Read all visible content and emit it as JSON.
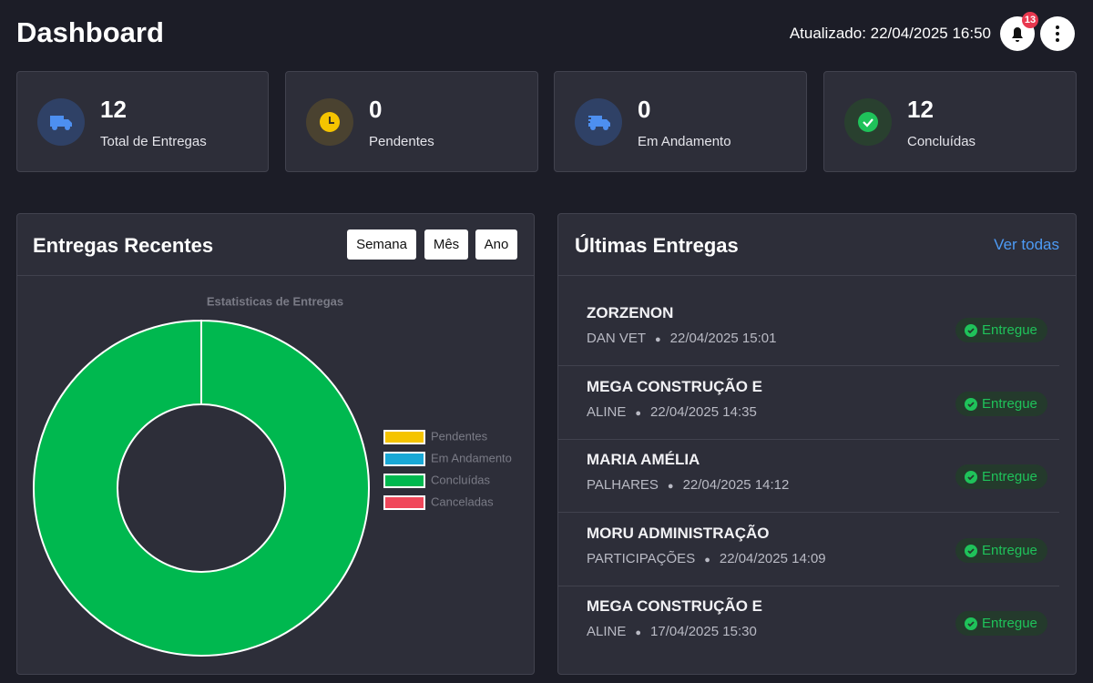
{
  "header": {
    "title": "Dashboard",
    "updated": "Atualizado: 22/04/2025 16:50",
    "notifications": 13
  },
  "stats": [
    {
      "value": 12,
      "label": "Total de Entregas"
    },
    {
      "value": 0,
      "label": "Pendentes"
    },
    {
      "value": 0,
      "label": "Em Andamento"
    },
    {
      "value": 12,
      "label": "Concluídas"
    }
  ],
  "recent": {
    "title": "Entregas Recentes",
    "filters": [
      "Semana",
      "Mês",
      "Ano"
    ]
  },
  "chart_data": {
    "type": "pie",
    "title": "Estatisticas de Entregas",
    "categories": [
      "Pendentes",
      "Em Andamento",
      "Concluídas",
      "Canceladas"
    ],
    "values": [
      0,
      0,
      12,
      0
    ],
    "colors": [
      "#f5c400",
      "#19a8d6",
      "#00b84f",
      "#f0475a"
    ]
  },
  "latest": {
    "title": "Últimas Entregas",
    "link": "Ver todas",
    "items": [
      {
        "name": "ZORZENON",
        "client": "DAN VET",
        "date": "22/04/2025 15:01",
        "status": "Entregue"
      },
      {
        "name": "MEGA CONSTRUÇÃO E",
        "client": "ALINE",
        "date": "22/04/2025 14:35",
        "status": "Entregue"
      },
      {
        "name": "MARIA AMÉLIA",
        "client": "PALHARES",
        "date": "22/04/2025 14:12",
        "status": "Entregue"
      },
      {
        "name": "MORU ADMINISTRAÇÃO",
        "client": "PARTICIPAÇÕES",
        "date": "22/04/2025 14:09",
        "status": "Entregue"
      },
      {
        "name": "MEGA CONSTRUÇÃO E",
        "client": "ALINE",
        "date": "17/04/2025 15:30",
        "status": "Entregue"
      }
    ]
  }
}
